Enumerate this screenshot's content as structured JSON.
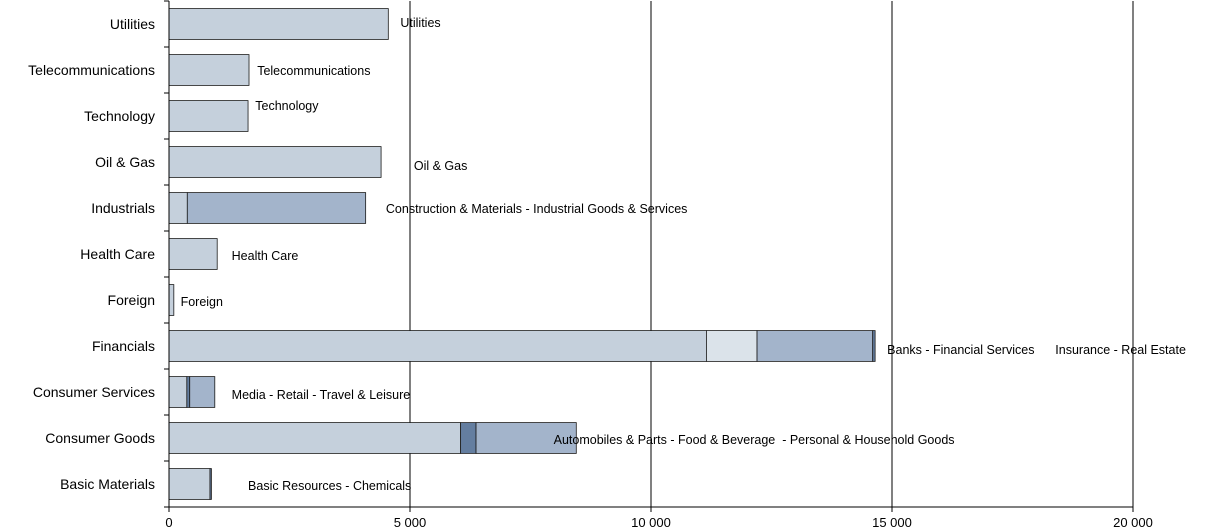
{
  "chart_data": {
    "type": "bar",
    "orientation": "horizontal",
    "stacked": true,
    "title": "",
    "xlabel": "",
    "ylabel": "",
    "xlim": [
      0,
      20000
    ],
    "xticks": [
      0,
      5000,
      10000,
      15000,
      20000
    ],
    "xtick_labels": [
      "0",
      "5 000",
      "10 000",
      "15 000",
      "20 000"
    ],
    "grid": "vertical",
    "legend": "none",
    "categories": [
      "Utilities",
      "Telecommunications",
      "Technology",
      "Oil & Gas",
      "Industrials",
      "Health Care",
      "Foreign",
      "Financials",
      "Consumer Services",
      "Consumer Goods",
      "Basic Materials"
    ],
    "segments": [
      [
        {
          "value": 4550,
          "color": "#c5d0dc"
        }
      ],
      [
        {
          "value": 1660,
          "color": "#c5d0dc"
        }
      ],
      [
        {
          "value": 1640,
          "color": "#c5d0dc"
        }
      ],
      [
        {
          "value": 4400,
          "color": "#c5d0dc"
        }
      ],
      [
        {
          "value": 380,
          "color": "#c5d0dc"
        },
        {
          "value": 3700,
          "color": "#a3b4cb"
        }
      ],
      [
        {
          "value": 1000,
          "color": "#c5d0dc"
        }
      ],
      [
        {
          "value": 100,
          "color": "#c5d0dc"
        }
      ],
      [
        {
          "value": 11150,
          "color": "#c5d0dc"
        },
        {
          "value": 1050,
          "color": "#dbe3ea"
        },
        {
          "value": 2400,
          "color": "#a3b4cb"
        },
        {
          "value": 50,
          "color": "#647ea0"
        }
      ],
      [
        {
          "value": 370,
          "color": "#c5d0dc"
        },
        {
          "value": 60,
          "color": "#647ea0"
        },
        {
          "value": 520,
          "color": "#a3b4cb"
        }
      ],
      [
        {
          "value": 6050,
          "color": "#c5d0dc"
        },
        {
          "value": 320,
          "color": "#647ea0"
        },
        {
          "value": 2080,
          "color": "#a3b4cb"
        }
      ],
      [
        {
          "value": 850,
          "color": "#c5d0dc"
        },
        {
          "value": 30,
          "color": "#647ea0"
        }
      ]
    ],
    "annotations": [
      "Utilities",
      "Telecommunications",
      "Technology",
      "Oil & Gas",
      "Construction & Materials - Industrial Goods & Services",
      "Health Care",
      "Foreign",
      "Banks - Financial Services      Insurance - Real Estate",
      "Media - Retail - Travel & Leisure",
      "Automobiles & Parts - Food & Beverage  - Personal & Household Goods",
      "Basic Resources - Chemicals"
    ],
    "annotation_x": [
      4800,
      1830,
      1790,
      5080,
      4500,
      1300,
      240,
      14900,
      1300,
      7980,
      1640
    ],
    "annotation_dy": [
      -1,
      1,
      -10,
      4,
      1,
      2,
      2,
      4,
      3,
      2,
      2
    ]
  }
}
